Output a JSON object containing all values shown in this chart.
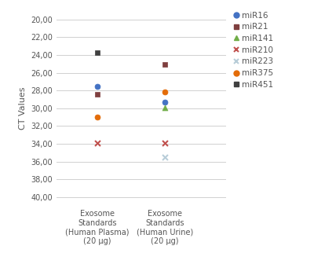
{
  "categories": [
    "Exosome\nStandards\n(Human Plasma)\n(20 µg)",
    "Exosome\nStandards\n(Human Urine)\n(20 µg)"
  ],
  "series": {
    "miR16": {
      "values": [
        27.5,
        29.3
      ],
      "color": "#4472c4",
      "marker": "o",
      "filled": true
    },
    "miR21": {
      "values": [
        28.4,
        25.1
      ],
      "color": "#7f3f3f",
      "marker": "s",
      "filled": true
    },
    "miR141": {
      "values": [
        null,
        29.9
      ],
      "color": "#70ad47",
      "marker": "^",
      "filled": true
    },
    "miR210": {
      "values": [
        33.9,
        33.9
      ],
      "color": "#c0504d",
      "marker": "x",
      "filled": false
    },
    "miR223": {
      "values": [
        null,
        35.5
      ],
      "color": "#b8cdd8",
      "marker": "x",
      "filled": false
    },
    "miR375": {
      "values": [
        31.0,
        28.2
      ],
      "color": "#e36c09",
      "marker": "o",
      "filled": true
    },
    "miR451": {
      "values": [
        23.7,
        null
      ],
      "color": "#404040",
      "marker": "s",
      "filled": true
    }
  },
  "ylabel": "CT Values",
  "ylim": [
    19,
    41
  ],
  "yticks": [
    20,
    22,
    24,
    26,
    28,
    30,
    32,
    34,
    36,
    38,
    40
  ],
  "yticklabels": [
    "20,00",
    "22,00",
    "24,00",
    "26,00",
    "28,00",
    "30,00",
    "32,00",
    "34,00",
    "36,00",
    "38,00",
    "40,00"
  ],
  "x_positions": [
    1,
    2
  ],
  "xlim": [
    0.4,
    2.9
  ],
  "background_color": "#ffffff",
  "grid_color": "#d0d0d0",
  "tick_label_fontsize": 7,
  "ylabel_fontsize": 8,
  "legend_fontsize": 7.5
}
